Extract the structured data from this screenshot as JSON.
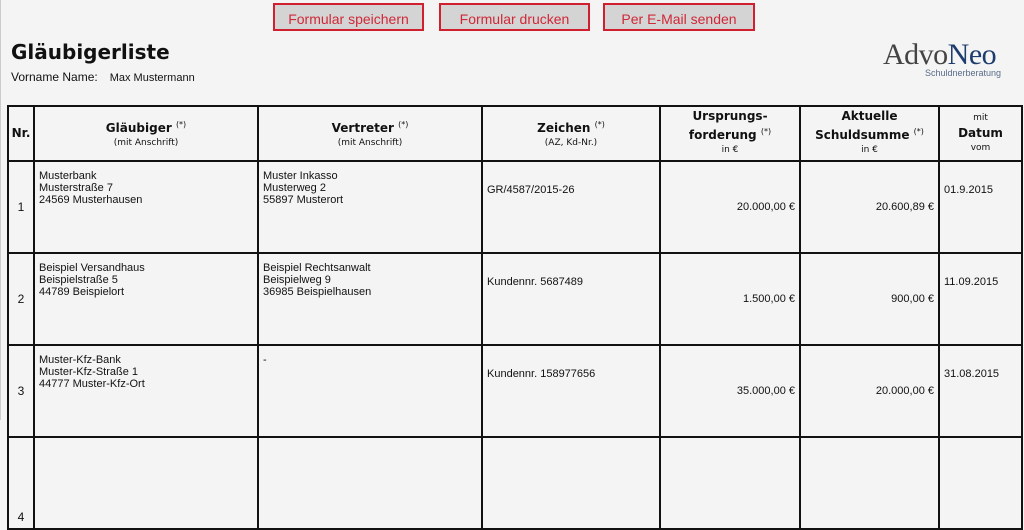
{
  "toolbar": {
    "save": "Formular speichern",
    "print": "Formular drucken",
    "email": "Per E-Mail senden"
  },
  "title": "Gläubigerliste",
  "name_label": "Vorname Name:",
  "name_value": "Max Mustermann",
  "logo": {
    "part1": "Advo",
    "part2": "Neo",
    "subtitle": "Schuldnerberatung"
  },
  "colors": {
    "button_border": "#d02030",
    "logo_accent": "#1e3d6e"
  },
  "headers": {
    "nr": "Nr.",
    "glaeubiger": {
      "title": "Gläubiger",
      "mark": "(*)",
      "sub": "(mit Anschrift)"
    },
    "vertreter": {
      "title": "Vertreter",
      "mark": "(*)",
      "sub": "(mit Anschrift)"
    },
    "zeichen": {
      "title": "Zeichen",
      "mark": "(*)",
      "sub": "(AZ, Kd-Nr.)"
    },
    "ursprung": {
      "title": "Ursprungs-forderung",
      "mark": "(*)",
      "sub": "in €"
    },
    "aktuell": {
      "title": "Aktuelle Schuldsumme",
      "mark": "(*)",
      "sub": "in €"
    },
    "datum": {
      "pre": "mit",
      "title": "Datum",
      "sub": "vom"
    }
  },
  "rows": [
    {
      "nr": "1",
      "g1": "Musterbank",
      "g2": "Musterstraße 7",
      "g3": "24569 Musterhausen",
      "v1": "Muster Inkasso",
      "v2": "Musterweg 2",
      "v3": "55897 Musterort",
      "zeichen": "GR/4587/2015-26",
      "ursprung": "20.000,00 €",
      "aktuell": "20.600,89 €",
      "datum": "01.9.2015"
    },
    {
      "nr": "2",
      "g1": "Beispiel Versandhaus",
      "g2": "Beispielstraße 5",
      "g3": "44789 Beispielort",
      "v1": "Beispiel Rechtsanwalt",
      "v2": "Beispielweg 9",
      "v3": "36985 Beispielhausen",
      "zeichen": "Kundennr. 5687489",
      "ursprung": "1.500,00 €",
      "aktuell": "900,00 €",
      "datum": "11.09.2015"
    },
    {
      "nr": "3",
      "g1": "Muster-Kfz-Bank",
      "g2": "Muster-Kfz-Straße 1",
      "g3": "44777 Muster-Kfz-Ort",
      "v1": "-",
      "v2": "",
      "v3": "",
      "zeichen": "Kundennr. 158977656",
      "ursprung": "35.000,00 €",
      "aktuell": "20.000,00 €",
      "datum": "31.08.2015"
    },
    {
      "nr": "4",
      "g1": "",
      "g2": "",
      "g3": "",
      "v1": "",
      "v2": "",
      "v3": "",
      "zeichen": "",
      "ursprung": "",
      "aktuell": "",
      "datum": ""
    }
  ]
}
